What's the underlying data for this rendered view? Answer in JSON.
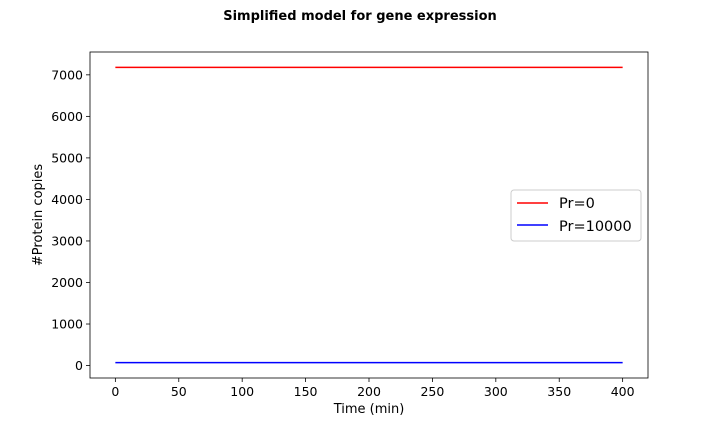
{
  "chart_data": {
    "type": "line",
    "title": "Simplified model for gene expression",
    "xlabel": "Time (min)",
    "ylabel": "#Protein copies",
    "xlim": [
      -20,
      420
    ],
    "ylim": [
      -300,
      7550
    ],
    "xticks": [
      0,
      50,
      100,
      150,
      200,
      250,
      300,
      350,
      400
    ],
    "yticks": [
      0,
      1000,
      2000,
      3000,
      4000,
      5000,
      6000,
      7000
    ],
    "grid": false,
    "legend_position": "center-right",
    "series": [
      {
        "name": "Pr=0",
        "color": "#ff0000",
        "x": [
          0,
          400
        ],
        "y": [
          7180,
          7180
        ]
      },
      {
        "name": "Pr=10000",
        "color": "#0000ff",
        "x": [
          0,
          400
        ],
        "y": [
          70,
          70
        ]
      }
    ]
  }
}
